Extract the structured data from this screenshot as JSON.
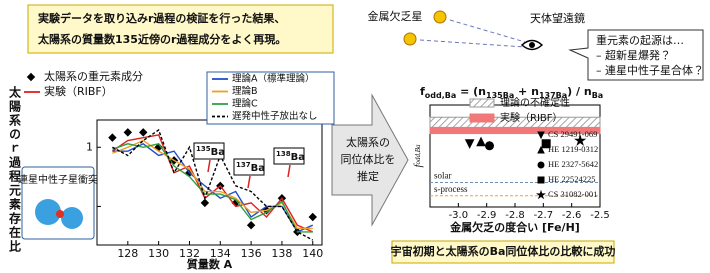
{
  "caption": {
    "lines": [
      "実験データを取り込みr過程の検証を行った結果、",
      "太陽系の質量数135近傍のr過程成分をよく再現。"
    ]
  },
  "arrow_text": [
    "太陽系の",
    "同位体比を",
    "推定"
  ],
  "observation": {
    "star_label": "金属欠乏星",
    "telescope_label": "天体望遠鏡",
    "bubble": [
      "重元素の起源は…",
      "– 超新星爆発？",
      "– 連星中性子星合体？"
    ]
  },
  "conclusion": "宇宙初期と太陽系のBa同位体比の比較に成功",
  "chart_data": [
    {
      "type": "line",
      "xlabel": "質量数 A",
      "ylabel": "太陽系のｒ過程元素存在比",
      "log_y": true,
      "inset_label": "連星中性子星衝突",
      "annotations": [
        [
          "135",
          "Ba"
        ],
        [
          "137",
          "Ba"
        ],
        [
          "138",
          "Ba"
        ]
      ],
      "x": [
        127,
        128,
        129,
        130,
        131,
        132,
        133,
        134,
        135,
        136,
        137,
        138,
        139,
        140
      ],
      "xlim": [
        126,
        140.6
      ],
      "xticks": [
        128,
        130,
        132,
        134,
        136,
        138,
        140
      ],
      "ylim": [
        0.07,
        2.1
      ],
      "yticks": [
        1,
        0.2
      ],
      "series": [
        {
          "name": "太陽系の重元素成分",
          "color": "#000000",
          "marker": "diamond",
          "values": [
            1.3,
            1.5,
            1.5,
            1.0,
            0.7,
            0.5,
            0.22,
            0.35,
            0.22,
            0.12,
            0.18,
            0.25,
            0.1,
            0.15
          ]
        },
        {
          "name": "実験（RIBF）",
          "color": "#e02020",
          "values": [
            0.9,
            1.2,
            1.3,
            1.4,
            0.5,
            0.6,
            0.25,
            0.35,
            0.2,
            0.22,
            0.15,
            0.25,
            0.12,
            0.1
          ]
        },
        {
          "name": "理論A（標準理論）",
          "color": "#2050d0",
          "values": [
            0.9,
            0.9,
            1.1,
            0.8,
            0.9,
            0.5,
            0.35,
            0.25,
            0.3,
            0.15,
            0.2,
            0.2,
            0.1,
            0.12
          ]
        },
        {
          "name": "理論B",
          "color": "#f0a020",
          "values": [
            0.85,
            1.0,
            1.2,
            0.9,
            0.7,
            0.55,
            0.3,
            0.3,
            0.25,
            0.17,
            0.18,
            0.22,
            0.11,
            0.11
          ]
        },
        {
          "name": "理論C",
          "color": "#30a040",
          "values": [
            0.95,
            1.1,
            1.0,
            1.1,
            0.6,
            0.45,
            0.28,
            0.28,
            0.24,
            0.14,
            0.17,
            0.23,
            0.1,
            0.1
          ]
        },
        {
          "name": "遅発中性子放出なし",
          "color": "#000000",
          "dash": true,
          "values": [
            1.0,
            0.8,
            1.2,
            1.6,
            0.5,
            1.0,
            0.25,
            0.8,
            0.35,
            0.3,
            0.2,
            0.2,
            0.1,
            0.08
          ]
        }
      ]
    },
    {
      "type": "scatter",
      "title": [
        "f",
        "odd,Ba",
        " = (n",
        "135Ba",
        " + n",
        "137Ba",
        ") / n",
        "Ba"
      ],
      "xlabel": "金属欠乏の度合い [Fe/H]",
      "ylabel": [
        "f",
        "odd,Ba"
      ],
      "xlim": [
        -3.1,
        -2.5
      ],
      "xticks": [
        {
          "value": -3,
          "label": "-3.0"
        },
        -2.9,
        -2.8,
        -2.7,
        -2.6,
        -2.5
      ],
      "ylim": [
        0,
        1
      ],
      "bands": [
        {
          "name": "理論の不確定性",
          "range": [
            0.78,
            0.88
          ],
          "color": "#999999"
        },
        {
          "name": "実験（RIBF）",
          "range": [
            0.72,
            0.78
          ],
          "color": "#f07878"
        }
      ],
      "reference_lines": [
        {
          "name": "solar",
          "value": 0.24,
          "color": "#7090b0"
        },
        {
          "name": "s-process",
          "value": 0.11,
          "color": "#e8a040"
        }
      ],
      "series": [
        {
          "name": "CS 29491-069",
          "marker": "triangle-down",
          "x": [
            -2.96
          ],
          "values": [
            0.62
          ]
        },
        {
          "name": "HE 1219-0312",
          "marker": "triangle-up",
          "x": [
            -2.92
          ],
          "values": [
            0.64
          ]
        },
        {
          "name": "HE 2327-5642",
          "marker": "circle",
          "x": [
            -2.89
          ],
          "values": [
            0.6
          ]
        },
        {
          "name": "HE 22524225",
          "marker": "square",
          "x": [
            -2.69
          ],
          "values": [
            0.62
          ]
        },
        {
          "name": "CS 31082-001",
          "marker": "star",
          "x": [
            -2.57
          ],
          "values": [
            0.65
          ]
        }
      ]
    }
  ]
}
